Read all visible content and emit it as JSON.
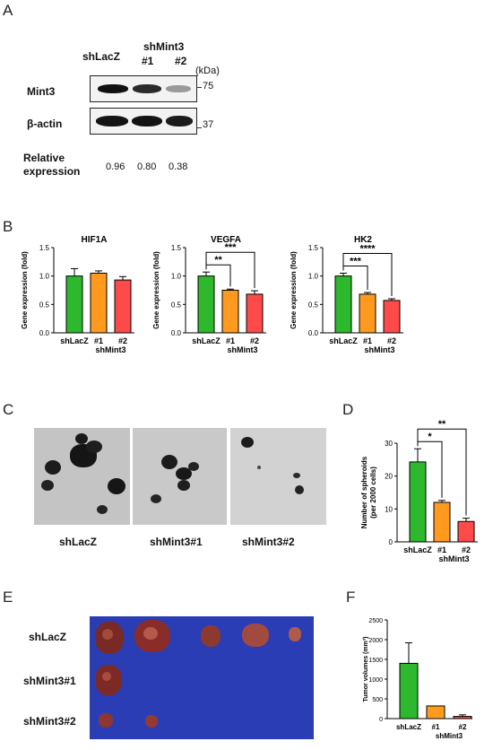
{
  "panelA": {
    "letter": "A",
    "lane1": "shLacZ",
    "lane23_title": "shMint3",
    "lane2": "#1",
    "lane3": "#2",
    "kda": "(kDa)",
    "row1": "Mint3",
    "row2": "β-actin",
    "marker1": "75",
    "marker2": "37",
    "rel_label": "Relative",
    "rel_label2": "expression",
    "rel_values": [
      "0.96",
      "0.80",
      "0.38"
    ],
    "band_intensity": [
      0.96,
      0.8,
      0.38
    ]
  },
  "panelB": {
    "letter": "B"
  },
  "panelC": {
    "letter": "C",
    "captions": [
      "shLacZ",
      "shMint3#1",
      "shMint3#2"
    ]
  },
  "panelD": {
    "letter": "D"
  },
  "panelE": {
    "letter": "E",
    "rows": [
      "shLacZ",
      "shMint3#1",
      "shMint3#2"
    ],
    "background": "#2a3db5"
  },
  "panelF": {
    "letter": "F"
  },
  "colors": {
    "green": "#2db82d",
    "orange": "#ff9a1f",
    "red": "#ff4a4a"
  },
  "chart_data": [
    {
      "type": "bar",
      "title": "HIF1A",
      "ylabel": "Gene expression (fold)",
      "categories": [
        "shLacZ",
        "#1",
        "#2"
      ],
      "group_label": "shMint3",
      "values": [
        1.0,
        1.05,
        0.93
      ],
      "errors": [
        0.13,
        0.04,
        0.06
      ],
      "ylim": [
        0,
        1.5
      ],
      "yticks": [
        "0.0",
        "0.5",
        "1.0",
        "1.5"
      ],
      "significance": []
    },
    {
      "type": "bar",
      "title": "VEGFA",
      "ylabel": "Gene expression (fold)",
      "categories": [
        "shLacZ",
        "#1",
        "#2"
      ],
      "group_label": "shMint3",
      "values": [
        1.0,
        0.75,
        0.68
      ],
      "errors": [
        0.07,
        0.02,
        0.06
      ],
      "ylim": [
        0,
        1.5
      ],
      "yticks": [
        "0.0",
        "0.5",
        "1.0",
        "1.5"
      ],
      "significance": [
        {
          "from": 0,
          "to": 1,
          "label": "**"
        },
        {
          "from": 0,
          "to": 2,
          "label": "***"
        }
      ]
    },
    {
      "type": "bar",
      "title": "HK2",
      "ylabel": "Gene expression (fold)",
      "categories": [
        "shLacZ",
        "#1",
        "#2"
      ],
      "group_label": "shMint3",
      "values": [
        1.0,
        0.68,
        0.57
      ],
      "errors": [
        0.05,
        0.03,
        0.03
      ],
      "ylim": [
        0,
        1.5
      ],
      "yticks": [
        "0.0",
        "0.5",
        "1.0",
        "1.5"
      ],
      "significance": [
        {
          "from": 0,
          "to": 1,
          "label": "***"
        },
        {
          "from": 0,
          "to": 2,
          "label": "****"
        }
      ]
    },
    {
      "type": "bar",
      "title": "",
      "ylabel": "Number of spheroids",
      "ylabel2": "(per 2000 cells)",
      "categories": [
        "shLacZ",
        "#1",
        "#2"
      ],
      "group_label": "shMint3",
      "values": [
        24.3,
        12.0,
        6.2
      ],
      "errors": [
        4.0,
        0.6,
        1.0
      ],
      "ylim": [
        0,
        30
      ],
      "yticks": [
        "0",
        "10",
        "20",
        "30"
      ],
      "significance": [
        {
          "from": 0,
          "to": 1,
          "label": "*"
        },
        {
          "from": 0,
          "to": 2,
          "label": "**"
        }
      ]
    },
    {
      "type": "bar",
      "title": "",
      "ylabel": "Tumor volumes (mm³)",
      "categories": [
        "shLacZ",
        "#1",
        "#2"
      ],
      "group_label": "shMint3",
      "values": [
        1400,
        320,
        55
      ],
      "errors": [
        520,
        0,
        40
      ],
      "ylim": [
        0,
        2500
      ],
      "yticks": [
        "0",
        "500",
        "1000",
        "1500",
        "2000",
        "2500"
      ],
      "significance": []
    }
  ]
}
